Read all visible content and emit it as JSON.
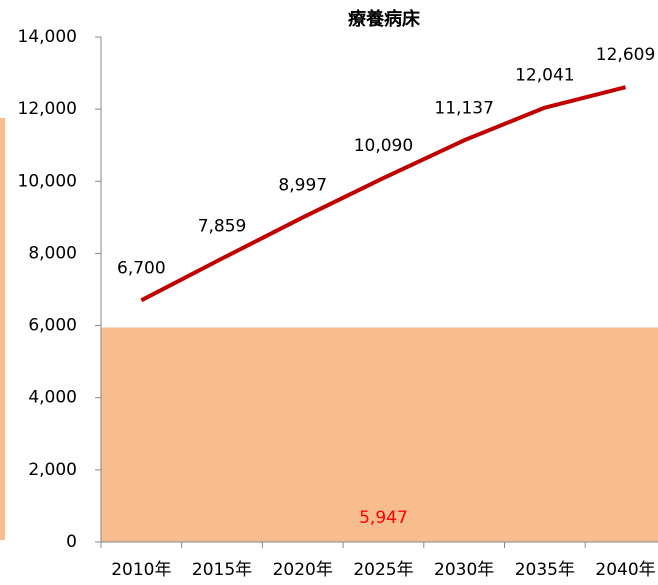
{
  "chart_data": {
    "type": "line",
    "title": "療養病床",
    "categories": [
      "2010年",
      "2015年",
      "2020年",
      "2025年",
      "2030年",
      "2035年",
      "2040年"
    ],
    "series": [
      {
        "color": "#c00000",
        "values": [
          6700,
          7859,
          8997,
          10090,
          11137,
          12041,
          12609
        ],
        "value_labels": [
          "6,700",
          "7,859",
          "8,997",
          "10,090",
          "11,137",
          "12,041",
          "12,609"
        ]
      }
    ],
    "reference_band": {
      "value": 5947,
      "label": "5,947",
      "color": "#f8bd8e",
      "label_color": "#ff0000"
    },
    "ylim": [
      0,
      14000
    ],
    "yticks": [
      0,
      {
        "value": 2000,
        "label": "2,000"
      },
      {
        "value": 4000,
        "label": "4,000"
      },
      {
        "value": 6000,
        "label": "6,000"
      },
      {
        "value": 8000,
        "label": "8,000"
      },
      {
        "value": 10000,
        "label": "10,000"
      },
      {
        "value": 12000,
        "label": "12,000"
      },
      {
        "value": 14000,
        "label": "14,000"
      }
    ]
  }
}
